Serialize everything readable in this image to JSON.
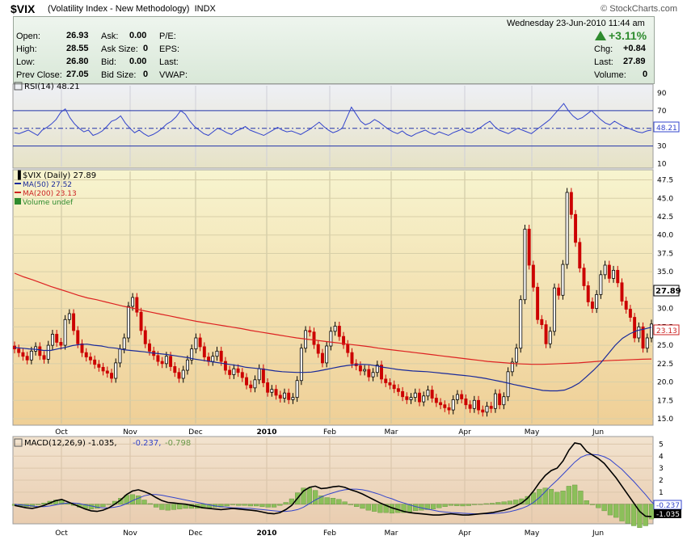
{
  "header": {
    "symbol": "$VIX",
    "name": "(Volatility Index - New Methodology)",
    "exchange": "INDX",
    "watermark": "© StockCharts.com",
    "datetime": "Wednesday  23-Jun-2010  11:44 am",
    "change_pct": "+3.11%",
    "up_color": "#2e8b2e"
  },
  "quote": {
    "open_label": "Open:",
    "open": "26.93",
    "high_label": "High:",
    "high": "28.55",
    "low_label": "Low:",
    "low": "26.80",
    "prev_label": "Prev Close:",
    "prev": "27.05",
    "ask_label": "Ask:",
    "ask": "0.00",
    "asksize_label": "Ask Size:",
    "asksize": "0",
    "bid_label": "Bid:",
    "bid": "0.00",
    "bidsize_label": "Bid Size:",
    "bidsize": "0",
    "pe_label": "P/E:",
    "eps_label": "EPS:",
    "last_label2": "Last:",
    "vwap_label": "VWAP:",
    "chg_label": "Chg:",
    "chg": "+0.84",
    "last_label": "Last:",
    "last": "27.89",
    "volume_label": "Volume:",
    "volume": "0"
  },
  "chart_data": [
    {
      "type": "line",
      "legend": "RSI(14) 48.21",
      "levels": [
        30,
        50,
        70
      ],
      "yticks": [
        "90",
        "70",
        "50",
        "30",
        "10"
      ],
      "last_value_label": "48.21",
      "color": "#3344cc",
      "values": [
        45,
        44,
        46,
        48,
        45,
        42,
        48,
        51,
        55,
        60,
        68,
        72,
        62,
        55,
        50,
        46,
        48,
        42,
        44,
        47,
        52,
        58,
        60,
        64,
        56,
        50,
        45,
        48,
        44,
        41,
        43,
        46,
        50,
        55,
        58,
        63,
        70,
        66,
        58,
        52,
        48,
        44,
        42,
        46,
        50,
        48,
        45,
        43,
        47,
        49,
        52,
        48,
        46,
        44,
        42,
        45,
        48,
        51,
        48,
        46,
        47,
        45,
        43,
        46,
        49,
        53,
        57,
        52,
        48,
        45,
        47,
        50,
        62,
        74,
        66,
        58,
        54,
        56,
        60,
        57,
        53,
        49,
        46,
        44,
        47,
        43,
        41,
        44,
        46,
        48,
        45,
        43,
        46,
        44,
        42,
        45,
        47,
        49,
        46,
        45,
        48,
        51,
        55,
        58,
        52,
        48,
        46,
        44,
        47,
        50,
        48,
        46,
        44,
        48,
        52,
        56,
        60,
        66,
        72,
        78,
        70,
        64,
        60,
        62,
        66,
        70,
        65,
        60,
        56,
        54,
        58,
        55,
        52,
        50,
        48,
        46,
        45,
        47,
        48
      ]
    },
    {
      "type": "candlestick",
      "legend": [
        "$VIX (Daily) 27.89",
        "MA(50) 27.52",
        "MA(200) 23.13",
        "Volume undef"
      ],
      "x_labels": [
        "Oct",
        "Nov",
        "Dec",
        "2010",
        "Feb",
        "Mar",
        "Apr",
        "May",
        "Jun"
      ],
      "yticks": [
        "47.5",
        "45.0",
        "42.5",
        "40.0",
        "37.5",
        "35.0",
        "32.5",
        "30.0",
        "27.5",
        "25.0",
        "22.5",
        "20.0",
        "17.5",
        "15.0"
      ],
      "ylim": [
        15,
        48
      ],
      "last_price_label": "27.89",
      "ma200_label": "23.13",
      "closes": [
        24.5,
        24.0,
        23.5,
        23.0,
        24.2,
        24.8,
        23.6,
        23.1,
        25.0,
        26.5,
        25.4,
        25.0,
        28.5,
        29.3,
        27.0,
        25.2,
        24.0,
        23.4,
        23.0,
        22.4,
        22.0,
        21.5,
        21.2,
        20.5,
        22.6,
        24.5,
        26.0,
        30.3,
        31.5,
        29.5,
        27.0,
        25.2,
        24.2,
        23.6,
        22.8,
        22.5,
        23.5,
        22.1,
        21.3,
        20.5,
        21.6,
        23.0,
        24.5,
        26.0,
        24.8,
        23.4,
        22.8,
        23.5,
        24.2,
        22.8,
        21.6,
        21.0,
        21.8,
        21.3,
        20.6,
        19.6,
        19.2,
        20.3,
        21.8,
        19.9,
        18.6,
        19.0,
        18.2,
        17.8,
        18.5,
        17.6,
        17.9,
        20.2,
        24.6,
        27.0,
        26.8,
        25.1,
        23.9,
        22.6,
        24.9,
        26.9,
        27.6,
        26.2,
        25.1,
        24.0,
        22.5,
        22.2,
        21.5,
        21.7,
        20.7,
        21.3,
        22.3,
        20.4,
        19.9,
        19.6,
        19.1,
        18.7,
        18.0,
        17.6,
        17.9,
        18.5,
        17.3,
        18.1,
        18.9,
        17.8,
        17.2,
        16.9,
        16.5,
        16.2,
        17.6,
        18.3,
        17.7,
        16.9,
        16.4,
        17.5,
        16.2,
        15.9,
        16.7,
        16.4,
        18.4,
        16.9,
        18.0,
        21.4,
        22.7,
        24.6,
        31.2,
        40.8,
        35.9,
        32.9,
        28.5,
        27.8,
        25.2,
        26.9,
        32.8,
        31.8,
        36.0,
        45.8,
        42.8,
        39.0,
        35.5,
        33.1,
        30.9,
        30.0,
        31.9,
        34.6,
        35.9,
        34.1,
        35.2,
        33.5,
        31.0,
        29.9,
        28.8,
        26.0,
        27.5,
        24.6,
        26.0,
        27.89
      ],
      "ma50": [
        24.7,
        24.6,
        24.5,
        24.45,
        24.3,
        24.3,
        24.5,
        24.7,
        24.95,
        25.1,
        25.15,
        25.0,
        24.9,
        24.7,
        24.6,
        24.4,
        24.3,
        24.2,
        24.1,
        23.95,
        23.85,
        23.75,
        23.6,
        23.45,
        23.3,
        23.1,
        22.95,
        22.8,
        22.65,
        22.5,
        22.35,
        22.2,
        22.0,
        21.9,
        21.8,
        21.65,
        21.5,
        21.4,
        21.35,
        21.3,
        21.3,
        21.35,
        21.5,
        21.7,
        21.9,
        22.1,
        22.25,
        22.35,
        22.4,
        22.35,
        22.2,
        22.0,
        21.85,
        21.7,
        21.6,
        21.5,
        21.45,
        21.4,
        21.3,
        21.2,
        21.1,
        21.0,
        20.9,
        20.8,
        20.65,
        20.5,
        20.3,
        20.1,
        19.9,
        19.65,
        19.45,
        19.25,
        19.05,
        18.85,
        18.8,
        18.8,
        18.9,
        19.3,
        19.85,
        20.7,
        21.6,
        22.6,
        23.8,
        25.0,
        25.95,
        26.55,
        27.0,
        27.2,
        27.45
      ],
      "ma200": [
        34.8,
        34.3,
        33.9,
        33.45,
        33.0,
        32.6,
        32.2,
        31.8,
        31.45,
        31.2,
        30.9,
        30.6,
        30.3,
        30.05,
        29.75,
        29.5,
        29.25,
        29.0,
        28.75,
        28.5,
        28.25,
        28.05,
        27.85,
        27.65,
        27.45,
        27.25,
        27.0,
        26.8,
        26.6,
        26.4,
        26.2,
        26.0,
        25.85,
        25.7,
        25.55,
        25.4,
        25.25,
        25.1,
        24.95,
        24.8,
        24.6,
        24.45,
        24.3,
        24.15,
        24.0,
        23.85,
        23.7,
        23.55,
        23.4,
        23.25,
        23.1,
        22.95,
        22.8,
        22.7,
        22.6,
        22.5,
        22.45,
        22.4,
        22.4,
        22.45,
        22.5,
        22.55,
        22.6,
        22.7,
        22.8,
        22.9,
        22.95,
        23.0,
        23.05,
        23.1,
        23.13
      ]
    },
    {
      "type": "macd",
      "legend_main": "MACD(12,26,9) -1.035,",
      "legend_signal": "-0.237,",
      "legend_hist": "-0.798",
      "yticks": [
        "5",
        "4",
        "3",
        "2",
        "1"
      ],
      "last_signal_label": "-0.237",
      "last_macd_label": "-1.035",
      "ylim": [
        -1.5,
        5.5
      ],
      "x_labels": [
        "Oct",
        "Nov",
        "Dec",
        "2010",
        "Feb",
        "Mar",
        "Apr",
        "May",
        "Jun"
      ],
      "macd": [
        -0.1,
        -0.2,
        -0.3,
        -0.35,
        -0.25,
        -0.1,
        0.1,
        0.3,
        0.4,
        0.2,
        0.0,
        -0.2,
        -0.4,
        -0.55,
        -0.6,
        -0.5,
        -0.3,
        0.0,
        0.35,
        0.8,
        1.1,
        1.2,
        1.05,
        0.85,
        0.55,
        0.3,
        0.15,
        0.1,
        0.05,
        0.0,
        -0.1,
        -0.2,
        -0.3,
        -0.35,
        -0.4,
        -0.45,
        -0.4,
        -0.35,
        -0.4,
        -0.45,
        -0.5,
        -0.55,
        -0.65,
        -0.75,
        -0.8,
        -0.7,
        -0.45,
        -0.1,
        0.5,
        1.1,
        1.4,
        1.5,
        1.3,
        1.35,
        1.45,
        1.5,
        1.4,
        1.2,
        1.05,
        0.85,
        0.6,
        0.35,
        0.1,
        -0.1,
        -0.3,
        -0.45,
        -0.6,
        -0.7,
        -0.75,
        -0.8,
        -0.85,
        -0.9,
        -0.9,
        -0.85,
        -0.8,
        -0.85,
        -0.9,
        -0.9,
        -0.85,
        -0.8,
        -0.75,
        -0.7,
        -0.6,
        -0.5,
        -0.35,
        -0.15,
        0.1,
        0.5,
        1.1,
        1.8,
        2.4,
        2.8,
        3.0,
        3.6,
        4.5,
        5.1,
        5.0,
        4.4,
        4.1,
        3.8,
        3.4,
        2.8,
        2.2,
        1.5,
        0.8,
        0.1,
        -0.6,
        -1.0,
        -1.035
      ],
      "signal": [
        0.0,
        -0.05,
        -0.1,
        -0.15,
        -0.2,
        -0.2,
        -0.15,
        -0.05,
        0.05,
        0.1,
        0.1,
        0.05,
        -0.05,
        -0.15,
        -0.25,
        -0.3,
        -0.3,
        -0.25,
        -0.15,
        0.05,
        0.3,
        0.5,
        0.7,
        0.8,
        0.8,
        0.75,
        0.65,
        0.55,
        0.45,
        0.35,
        0.25,
        0.15,
        0.05,
        -0.05,
        -0.15,
        -0.2,
        -0.25,
        -0.3,
        -0.3,
        -0.35,
        -0.35,
        -0.4,
        -0.45,
        -0.5,
        -0.55,
        -0.6,
        -0.6,
        -0.55,
        -0.45,
        -0.25,
        0.05,
        0.35,
        0.6,
        0.8,
        0.95,
        1.1,
        1.2,
        1.25,
        1.25,
        1.2,
        1.1,
        0.95,
        0.8,
        0.6,
        0.45,
        0.25,
        0.1,
        -0.05,
        -0.2,
        -0.3,
        -0.4,
        -0.5,
        -0.6,
        -0.65,
        -0.7,
        -0.72,
        -0.75,
        -0.78,
        -0.8,
        -0.8,
        -0.8,
        -0.78,
        -0.75,
        -0.7,
        -0.62,
        -0.5,
        -0.35,
        -0.15,
        0.15,
        0.55,
        1.05,
        1.55,
        2.0,
        2.5,
        3.0,
        3.5,
        3.9,
        4.1,
        4.15,
        4.1,
        3.95,
        3.7,
        3.3,
        2.9,
        2.4,
        1.9,
        1.35,
        0.8,
        0.2,
        -0.237
      ]
    }
  ]
}
